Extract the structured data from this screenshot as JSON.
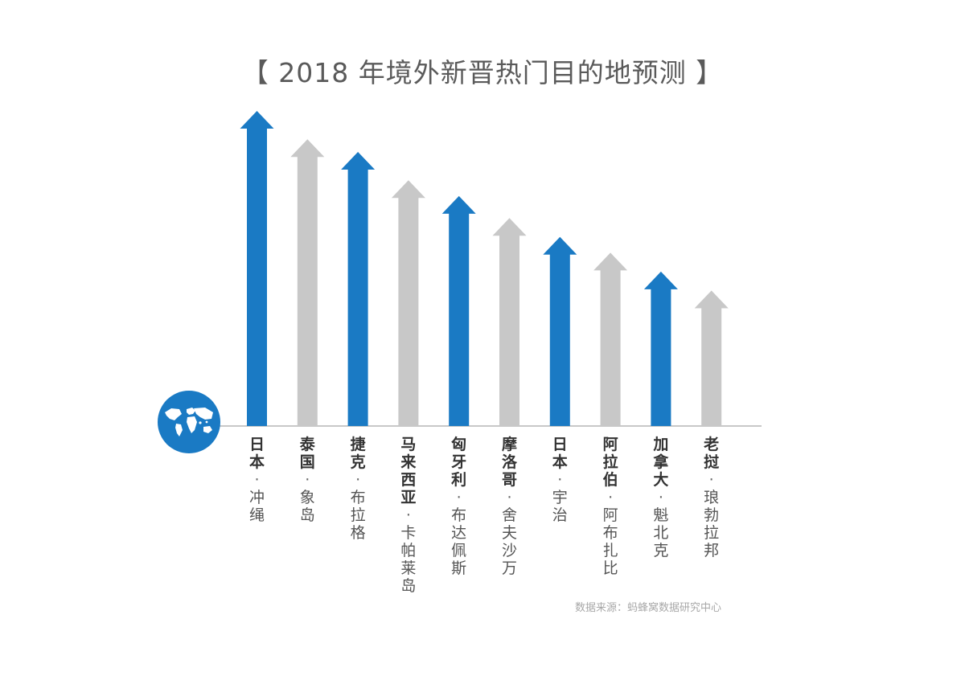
{
  "chart_data": {
    "type": "bar",
    "title": "【 2018 年境外新晋热门目的地预测 】",
    "categories": [
      {
        "country": "日本",
        "city": "冲绳"
      },
      {
        "country": "泰国",
        "city": "象岛"
      },
      {
        "country": "捷克",
        "city": "布拉格"
      },
      {
        "country": "马来西亚",
        "city": "卡帕莱岛"
      },
      {
        "country": "匈牙利",
        "city": "布达佩斯"
      },
      {
        "country": "摩洛哥",
        "city": "舍夫沙万"
      },
      {
        "country": "日本",
        "city": "宇治"
      },
      {
        "country": "阿拉伯",
        "city": "阿布扎比"
      },
      {
        "country": "加拿大",
        "city": "魁北克"
      },
      {
        "country": "老挝",
        "city": "琅勃拉邦"
      }
    ],
    "values": [
      10,
      9.1,
      8.7,
      7.8,
      7.3,
      6.6,
      6.0,
      5.5,
      4.9,
      4.3
    ],
    "value_note": "relative ranking; no numeric axis shown",
    "bar_colors": [
      "#1a7ac4",
      "#c8c8c8",
      "#1a7ac4",
      "#c8c8c8",
      "#1a7ac4",
      "#c8c8c8",
      "#1a7ac4",
      "#c8c8c8",
      "#1a7ac4",
      "#c8c8c8"
    ],
    "separator": "·",
    "grid": false,
    "legend": "none"
  },
  "colors": {
    "blue": "#1a7ac4",
    "gray": "#c8c8c8",
    "baseline": "#b5b5b5",
    "globe": "#1a7ac4"
  },
  "icons": {
    "globe": "world-map-globe-icon"
  },
  "source": "数据来源：蚂蜂窝数据研究中心"
}
